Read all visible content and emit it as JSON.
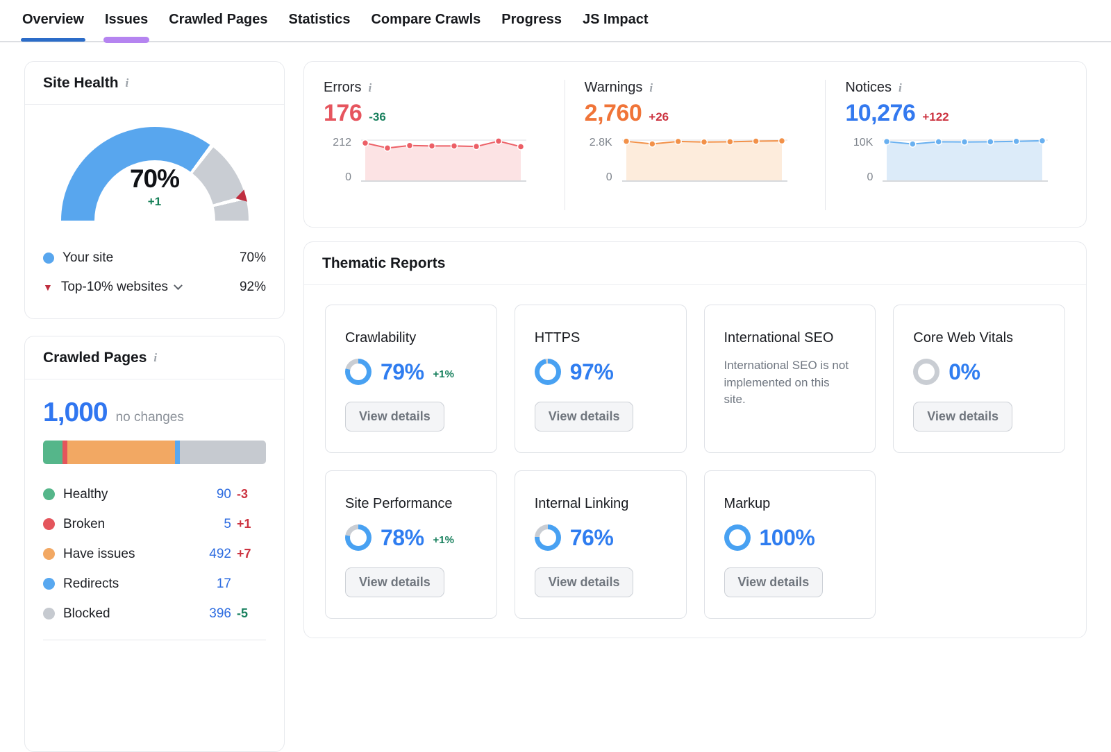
{
  "nav": {
    "tabs": [
      {
        "label": "Overview",
        "state": "active"
      },
      {
        "label": "Issues",
        "state": "highlight"
      },
      {
        "label": "Crawled Pages",
        "state": ""
      },
      {
        "label": "Statistics",
        "state": ""
      },
      {
        "label": "Compare Crawls",
        "state": ""
      },
      {
        "label": "Progress",
        "state": ""
      },
      {
        "label": "JS Impact",
        "state": ""
      }
    ],
    "active_underline_color": "#2b6cc8",
    "highlight_underline_color": "#b584f0"
  },
  "site_health": {
    "title": "Site Health",
    "info_icon": "i",
    "score": "70%",
    "delta": "+1",
    "gauge": {
      "percent": 70,
      "benchmark": 92,
      "blue": "#58a6ee",
      "gray": "#c9cdd3",
      "marker_color": "#bf2e3f"
    },
    "legend": [
      {
        "label": "Your site",
        "value": "70%",
        "dot_color": "#58a6ee"
      },
      {
        "label": "Top-10% websites",
        "value": "92%",
        "marker": "triangle-down-red"
      }
    ]
  },
  "issue_summary": {
    "columns": [
      {
        "label": "Errors",
        "info_icon": "i",
        "value": "176",
        "delta": "-36",
        "delta_class": "d-green",
        "value_class": "c-red",
        "axis_max_label": "212",
        "axis_min_label": "0",
        "axis_max": 212,
        "line": "#ec5f66",
        "fill": "#fce3e4",
        "points": [
          197,
          171,
          184,
          182,
          182,
          179,
          207,
          178
        ]
      },
      {
        "label": "Warnings",
        "info_icon": "i",
        "value": "2,760",
        "delta": "+26",
        "delta_class": "d-red",
        "value_class": "c-orange",
        "axis_max_label": "2.8K",
        "axis_min_label": "0",
        "axis_max": 2800,
        "line": "#f29149",
        "fill": "#fdecdc",
        "points": [
          2720,
          2540,
          2710,
          2670,
          2690,
          2730,
          2750
        ]
      },
      {
        "label": "Notices",
        "info_icon": "i",
        "value": "10,276",
        "delta": "+122",
        "delta_class": "d-red",
        "value_class": "c-blue",
        "axis_max_label": "10K",
        "axis_min_label": "0",
        "axis_max": 10000,
        "line": "#69b0f0",
        "fill": "#dcebf9",
        "points": [
          9650,
          9050,
          9600,
          9550,
          9600,
          9700,
          9850
        ]
      }
    ]
  },
  "thematic": {
    "title": "Thematic Reports",
    "button_label": "View details",
    "donut_blue": "#48a1f2",
    "donut_gray": "#c9cdd3",
    "cards": [
      {
        "title": "Crawlability",
        "percent": 79,
        "percent_label": "79%",
        "delta": "+1%"
      },
      {
        "title": "HTTPS",
        "percent": 97,
        "percent_label": "97%"
      },
      {
        "title": "International SEO",
        "message": "International SEO is not implemented on this site."
      },
      {
        "title": "Core Web Vitals",
        "percent": 0,
        "percent_label": "0%"
      },
      {
        "title": "Site Performance",
        "percent": 78,
        "percent_label": "78%",
        "delta": "+1%"
      },
      {
        "title": "Internal Linking",
        "percent": 76,
        "percent_label": "76%"
      },
      {
        "title": "Markup",
        "percent": 100,
        "percent_label": "100%"
      }
    ]
  },
  "crawled_pages": {
    "title": "Crawled Pages",
    "info_icon": "i",
    "total": "1,000",
    "note": "no changes",
    "segments": [
      {
        "name": "healthy",
        "value": 90,
        "color": "#55b68a"
      },
      {
        "name": "broken",
        "value": 5,
        "color": "#e4555c"
      },
      {
        "name": "have-issues",
        "value": 492,
        "color": "#f2a863"
      },
      {
        "name": "redirects",
        "value": 17,
        "color": "#58a8f0"
      },
      {
        "name": "blocked",
        "value": 396,
        "color": "#c6cad0"
      }
    ],
    "rows": [
      {
        "label": "Healthy",
        "value": "90",
        "delta": "-3",
        "delta_class": "d-red",
        "dot": "#55b68a"
      },
      {
        "label": "Broken",
        "value": "5",
        "delta": "+1",
        "delta_class": "d-red",
        "dot": "#e4555c"
      },
      {
        "label": "Have issues",
        "value": "492",
        "delta": "+7",
        "delta_class": "d-red",
        "dot": "#f2a863"
      },
      {
        "label": "Redirects",
        "value": "17",
        "delta": "",
        "delta_class": "",
        "dot": "#58a8f0"
      },
      {
        "label": "Blocked",
        "value": "396",
        "delta": "-5",
        "delta_class": "d-green",
        "dot": "#c6cad0"
      }
    ]
  }
}
